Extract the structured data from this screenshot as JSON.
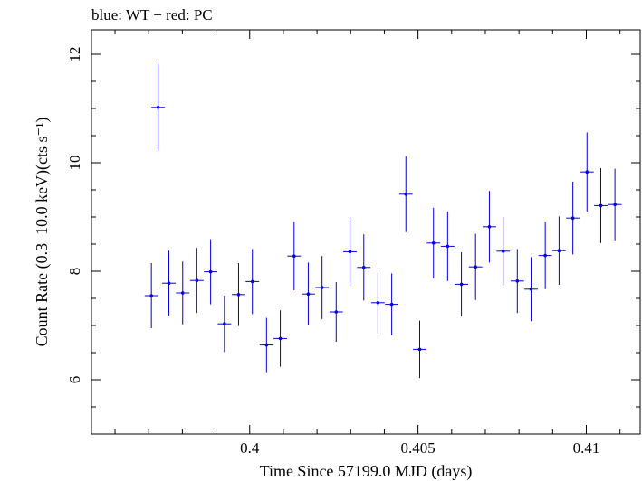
{
  "chart_data": {
    "type": "scatter",
    "title": "blue: WT − red: PC",
    "xlabel": "Time Since 57199.0 MJD (days)",
    "ylabel": "Count Rate (0.3–10.0 keV)(cts s⁻¹)",
    "xlim": [
      0.3953,
      0.4116
    ],
    "ylim": [
      5.0,
      12.45
    ],
    "xticks": [
      0.4,
      0.405,
      0.41
    ],
    "xtick_labels": [
      "0.4",
      "0.405",
      "0.41"
    ],
    "yticks": [
      6,
      8,
      10,
      12
    ],
    "ytick_labels": [
      "6",
      "8",
      "10",
      "12"
    ],
    "grid": false,
    "series": [
      {
        "color": "#0000dd",
        "x_halfwidth": 0.0002,
        "points": [
          {
            "x": 0.39708,
            "y": 7.55,
            "err": 0.6
          },
          {
            "x": 0.39728,
            "y": 11.02,
            "err": 0.8
          },
          {
            "x": 0.3976,
            "y": 7.78,
            "err": 0.6
          },
          {
            "x": 0.39801,
            "y": 7.6,
            "err": 0.58
          },
          {
            "x": 0.39843,
            "y": 7.83,
            "err": 0.6
          },
          {
            "x": 0.39884,
            "y": 7.99,
            "err": 0.6
          },
          {
            "x": 0.39925,
            "y": 7.03,
            "err": 0.52
          },
          {
            "x": 0.39967,
            "y": 7.57,
            "err": 0.58
          },
          {
            "x": 0.40008,
            "y": 7.81,
            "err": 0.6
          },
          {
            "x": 0.4005,
            "y": 6.64,
            "err": 0.5
          },
          {
            "x": 0.40091,
            "y": 6.76,
            "err": 0.52
          },
          {
            "x": 0.40132,
            "y": 8.28,
            "err": 0.63
          },
          {
            "x": 0.40174,
            "y": 7.58,
            "err": 0.58
          },
          {
            "x": 0.40215,
            "y": 7.7,
            "err": 0.58
          },
          {
            "x": 0.40257,
            "y": 7.25,
            "err": 0.55
          },
          {
            "x": 0.40298,
            "y": 8.36,
            "err": 0.63
          },
          {
            "x": 0.40339,
            "y": 8.07,
            "err": 0.61
          },
          {
            "x": 0.40381,
            "y": 7.42,
            "err": 0.56
          },
          {
            "x": 0.40422,
            "y": 7.39,
            "err": 0.57
          },
          {
            "x": 0.40464,
            "y": 9.42,
            "err": 0.7
          },
          {
            "x": 0.40505,
            "y": 6.56,
            "err": 0.53
          },
          {
            "x": 0.40546,
            "y": 8.52,
            "err": 0.65
          },
          {
            "x": 0.40588,
            "y": 8.46,
            "err": 0.64
          },
          {
            "x": 0.40629,
            "y": 7.76,
            "err": 0.59
          },
          {
            "x": 0.40671,
            "y": 8.08,
            "err": 0.61
          },
          {
            "x": 0.40712,
            "y": 8.82,
            "err": 0.66
          },
          {
            "x": 0.40753,
            "y": 8.37,
            "err": 0.63
          },
          {
            "x": 0.40795,
            "y": 7.82,
            "err": 0.59
          },
          {
            "x": 0.40836,
            "y": 7.67,
            "err": 0.59
          },
          {
            "x": 0.40878,
            "y": 8.29,
            "err": 0.62
          },
          {
            "x": 0.40919,
            "y": 8.38,
            "err": 0.63
          },
          {
            "x": 0.4096,
            "y": 8.98,
            "err": 0.67
          },
          {
            "x": 0.41002,
            "y": 9.83,
            "err": 0.73
          },
          {
            "x": 0.41043,
            "y": 9.21,
            "err": 0.69
          },
          {
            "x": 0.41085,
            "y": 9.23,
            "err": 0.66
          }
        ]
      }
    ]
  }
}
